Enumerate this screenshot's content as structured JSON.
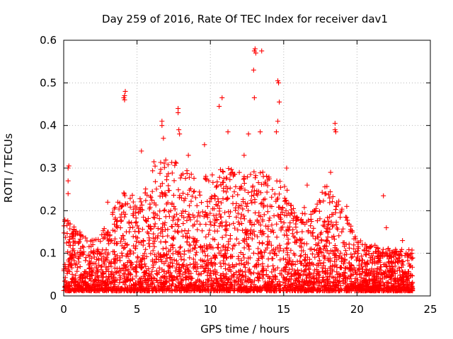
{
  "chart_data": {
    "type": "scatter",
    "title": "Day 259 of 2016, Rate Of TEC Index for receiver dav1",
    "xlabel": "GPS time / hours",
    "ylabel": "ROTI / TECUs",
    "xlim": [
      0,
      25
    ],
    "ylim": [
      0,
      0.6
    ],
    "xticks": [
      0,
      5,
      10,
      15,
      20,
      25
    ],
    "yticks": [
      0,
      0.1,
      0.2,
      0.3,
      0.4,
      0.5,
      0.6
    ],
    "xtick_labels": [
      "0",
      "5",
      "10",
      "15",
      "20",
      "25"
    ],
    "ytick_labels": [
      "0",
      "0.1",
      "0.2",
      "0.3",
      "0.4",
      "0.5",
      "0.6"
    ],
    "grid": true,
    "marker": "+",
    "color": "#ff0000",
    "series": [
      {
        "name": "dav1",
        "envelope": {
          "x": [
            0,
            1,
            2,
            3,
            4,
            5,
            6,
            7,
            8,
            9,
            10,
            11,
            12,
            13,
            14,
            15,
            16,
            17,
            18,
            19,
            20,
            21,
            22,
            23,
            23.8
          ],
          "y": [
            0.18,
            0.14,
            0.12,
            0.16,
            0.24,
            0.22,
            0.3,
            0.32,
            0.3,
            0.27,
            0.27,
            0.3,
            0.28,
            0.28,
            0.28,
            0.25,
            0.2,
            0.19,
            0.26,
            0.2,
            0.12,
            0.11,
            0.1,
            0.1,
            0.1
          ]
        },
        "points": [
          [
            0.3,
            0.3
          ],
          [
            0.35,
            0.305
          ],
          [
            0.3,
            0.27
          ],
          [
            0.3,
            0.24
          ],
          [
            4.1,
            0.465
          ],
          [
            4.15,
            0.47
          ],
          [
            4.2,
            0.48
          ],
          [
            4.15,
            0.46
          ],
          [
            6.7,
            0.41
          ],
          [
            6.7,
            0.4
          ],
          [
            6.8,
            0.37
          ],
          [
            7.8,
            0.44
          ],
          [
            7.8,
            0.43
          ],
          [
            7.85,
            0.39
          ],
          [
            7.9,
            0.38
          ],
          [
            10.6,
            0.445
          ],
          [
            10.8,
            0.465
          ],
          [
            11.2,
            0.385
          ],
          [
            12.6,
            0.38
          ],
          [
            12.95,
            0.53
          ],
          [
            13.0,
            0.575
          ],
          [
            13.05,
            0.58
          ],
          [
            13.1,
            0.57
          ],
          [
            13.0,
            0.465
          ],
          [
            13.5,
            0.575
          ],
          [
            13.4,
            0.385
          ],
          [
            14.6,
            0.505
          ],
          [
            14.65,
            0.5
          ],
          [
            14.7,
            0.455
          ],
          [
            14.6,
            0.41
          ],
          [
            14.5,
            0.385
          ],
          [
            18.5,
            0.405
          ],
          [
            18.55,
            0.385
          ],
          [
            18.5,
            0.39
          ],
          [
            21.8,
            0.235
          ],
          [
            22.0,
            0.16
          ],
          [
            3.0,
            0.22
          ],
          [
            5.3,
            0.34
          ],
          [
            8.5,
            0.33
          ],
          [
            9.6,
            0.355
          ],
          [
            12.3,
            0.33
          ],
          [
            15.2,
            0.3
          ],
          [
            16.6,
            0.26
          ],
          [
            17.5,
            0.22
          ],
          [
            18.2,
            0.29
          ],
          [
            19.3,
            0.21
          ],
          [
            23.1,
            0.13
          ]
        ]
      }
    ]
  }
}
